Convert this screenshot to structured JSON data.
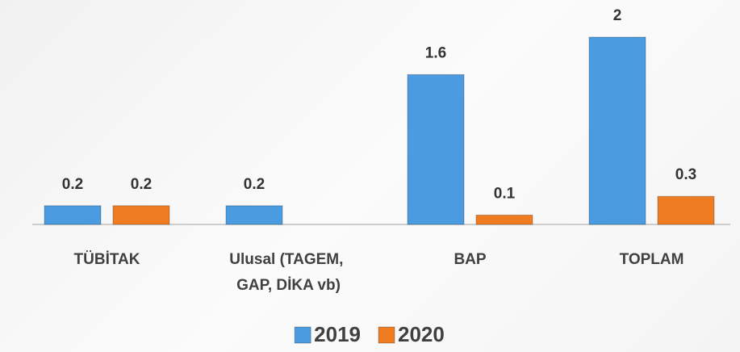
{
  "chart_data": {
    "type": "bar",
    "categories": [
      "TÜBİTAK",
      "Ulusal (TAGEM, GAP, DİKA vb)",
      "BAP",
      "TOPLAM"
    ],
    "series": [
      {
        "name": "2019",
        "color": "#4a9be0",
        "values": [
          0.2,
          0.2,
          1.6,
          2
        ]
      },
      {
        "name": "2020",
        "color": "#f07c22",
        "values": [
          0.2,
          null,
          0.1,
          0.3
        ]
      }
    ],
    "ylim": [
      0,
      2
    ],
    "legend": "bottom"
  }
}
